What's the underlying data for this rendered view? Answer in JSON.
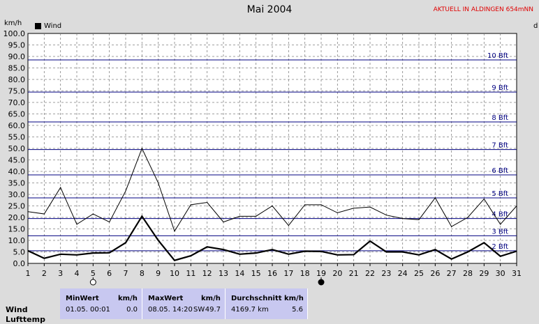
{
  "header": {
    "title": "Mai 2004",
    "station": "AKTUELL IN ALDINGEN 654mNN",
    "y_unit": "km/h",
    "right_unit": "d"
  },
  "legend": {
    "label": "Wind"
  },
  "chart_data": {
    "type": "line",
    "x": [
      1,
      2,
      3,
      4,
      5,
      6,
      7,
      8,
      9,
      10,
      11,
      12,
      13,
      14,
      15,
      16,
      17,
      18,
      19,
      20,
      21,
      22,
      23,
      24,
      25,
      26,
      27,
      28,
      29,
      30,
      31
    ],
    "ylim": [
      0,
      100
    ],
    "y_ticks": [
      "0.0",
      "5.0",
      "10.0",
      "15.0",
      "20.0",
      "25.0",
      "30.0",
      "35.0",
      "40.0",
      "45.0",
      "50.0",
      "55.0",
      "60.0",
      "65.0",
      "70.0",
      "75.0",
      "80.0",
      "85.0",
      "90.0",
      "95.0",
      "100.0"
    ],
    "x_ticks": [
      "1",
      "2",
      "3",
      "4",
      "5",
      "6",
      "7",
      "8",
      "9",
      "10",
      "11",
      "12",
      "13",
      "14",
      "15",
      "16",
      "17",
      "18",
      "19",
      "20",
      "21",
      "22",
      "23",
      "24",
      "25",
      "26",
      "27",
      "28",
      "29",
      "30",
      "31"
    ],
    "series": [
      {
        "name": "Wind",
        "values": [
          5.5,
          2.2,
          4.0,
          3.7,
          4.5,
          4.6,
          9.0,
          20.5,
          10.0,
          1.3,
          3.3,
          7.2,
          6.0,
          4.0,
          4.5,
          6.0,
          4.0,
          5.3,
          5.2,
          3.7,
          3.8,
          9.7,
          5.0,
          5.0,
          3.7,
          6.0,
          1.9,
          5.0,
          9.0,
          3.1,
          5.3
        ]
      },
      {
        "values": [
          22.5,
          21.5,
          33.0,
          17.0,
          21.5,
          18.0,
          31.5,
          50.0,
          35.0,
          14.0,
          25.5,
          26.5,
          18.0,
          20.5,
          20.5,
          25.0,
          16.5,
          25.5,
          25.5,
          22.0,
          24.0,
          24.5,
          21.0,
          19.5,
          19.0,
          28.5,
          16.0,
          20.0,
          28.0,
          17.0,
          25.0
        ]
      }
    ],
    "beaufort": [
      {
        "label": "2 Bft",
        "value": 5.5
      },
      {
        "label": "3 Bft",
        "value": 12.0
      },
      {
        "label": "4 Bft",
        "value": 19.5
      },
      {
        "label": "5 Bft",
        "value": 28.5
      },
      {
        "label": "6 Bft",
        "value": 38.5
      },
      {
        "label": "7 Bft",
        "value": 49.5
      },
      {
        "label": "8 Bft",
        "value": 61.5
      },
      {
        "label": "9 Bft",
        "value": 74.5
      },
      {
        "label": "10 Bft",
        "value": 88.5
      }
    ],
    "moon": [
      {
        "day": 5,
        "phase": "full"
      },
      {
        "day": 19,
        "phase": "new"
      }
    ],
    "colors": {
      "plot_bg": "#ffffff",
      "grid": "#808080",
      "beaufort": "#000080",
      "label": "#000080",
      "line": "#000000"
    }
  },
  "stats": {
    "row_label": "Wind",
    "row_label2": "Lufttemp",
    "min": {
      "header": "MinWert",
      "unit": "km/h",
      "date": "01.05.  00:01",
      "value": "0.0"
    },
    "max": {
      "header": "MaxWert",
      "unit": "km/h",
      "date": "08.05.  14:20",
      "dir": "SW",
      "value": "49.7"
    },
    "avg": {
      "header": "Durchschnitt km/h",
      "distance": "4169.7 km",
      "value": "5.6"
    }
  }
}
